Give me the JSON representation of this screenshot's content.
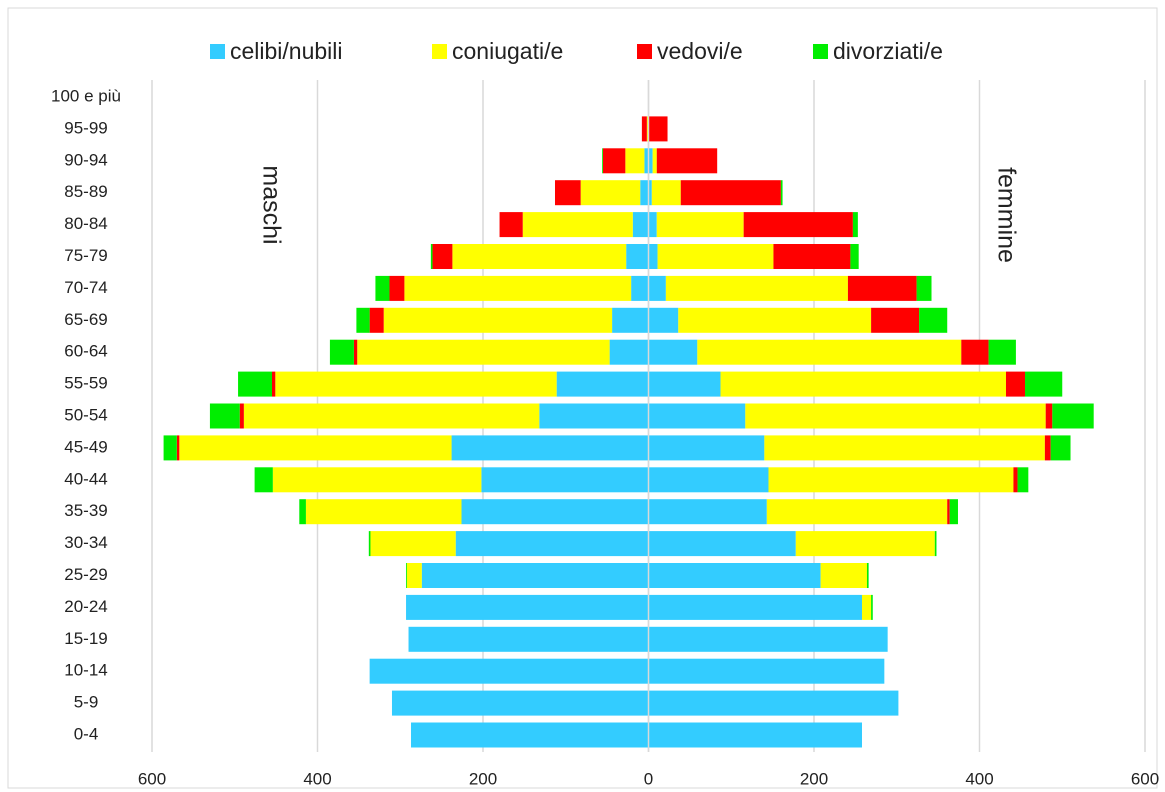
{
  "chart_data": {
    "type": "pyramid",
    "categories": [
      "0-4",
      "5-9",
      "10-14",
      "15-19",
      "20-24",
      "25-29",
      "30-34",
      "35-39",
      "40-44",
      "45-49",
      "50-54",
      "55-59",
      "60-64",
      "65-69",
      "70-74",
      "75-79",
      "80-84",
      "85-89",
      "90-94",
      "95-99",
      "100 e più"
    ],
    "annotations": [
      "maschi",
      "femmine"
    ],
    "xlim": [
      -600,
      600
    ],
    "xticks": [
      {
        "value": -600,
        "label": "600"
      },
      {
        "value": -400,
        "label": "400"
      },
      {
        "value": -200,
        "label": "200"
      },
      0,
      200,
      400,
      600
    ],
    "grid": true,
    "legend": "top",
    "series": [
      {
        "name": "celibi/nubili",
        "color": "#33ccff",
        "values": [
          [
            -287,
            258
          ],
          [
            -310,
            302
          ],
          [
            -337,
            285
          ],
          [
            -290,
            289
          ],
          [
            -293,
            258
          ],
          [
            -274,
            208
          ],
          [
            -233,
            178
          ],
          [
            -226,
            143
          ],
          [
            -202,
            145
          ],
          [
            -238,
            140
          ],
          [
            -132,
            117
          ],
          [
            -111,
            87
          ],
          [
            -47,
            59
          ],
          [
            -44,
            36
          ],
          [
            -21,
            21
          ],
          [
            -27,
            11
          ],
          [
            -19,
            10
          ],
          [
            -10,
            4
          ],
          [
            -5,
            5
          ],
          [
            0,
            0
          ],
          [
            0,
            0
          ]
        ]
      },
      {
        "name": "coniugati/e",
        "color": "#ffff00",
        "values": [
          [
            0,
            0
          ],
          [
            0,
            0
          ],
          [
            0,
            0
          ],
          [
            0,
            0
          ],
          [
            0,
            11
          ],
          [
            -18,
            56
          ],
          [
            -103,
            168
          ],
          [
            -188,
            218
          ],
          [
            -252,
            296
          ],
          [
            -329,
            339
          ],
          [
            -357,
            363
          ],
          [
            -340,
            345
          ],
          [
            -305,
            319
          ],
          [
            -276,
            233
          ],
          [
            -274,
            220
          ],
          [
            -210,
            140
          ],
          [
            -133,
            105
          ],
          [
            -72,
            35
          ],
          [
            -23,
            5
          ],
          [
            -2,
            0
          ],
          [
            0,
            0
          ]
        ]
      },
      {
        "name": "vedovi/e",
        "color": "#ff0000",
        "values": [
          [
            0,
            0
          ],
          [
            0,
            0
          ],
          [
            0,
            0
          ],
          [
            0,
            0
          ],
          [
            0,
            0
          ],
          [
            0,
            0
          ],
          [
            0,
            0
          ],
          [
            0,
            3
          ],
          [
            0,
            5
          ],
          [
            -3,
            7
          ],
          [
            -5,
            8
          ],
          [
            -4,
            23
          ],
          [
            -4,
            33
          ],
          [
            -17,
            58
          ],
          [
            -18,
            83
          ],
          [
            -24,
            93
          ],
          [
            -28,
            132
          ],
          [
            -31,
            121
          ],
          [
            -27,
            73
          ],
          [
            -6,
            23
          ],
          [
            0,
            0
          ]
        ]
      },
      {
        "name": "divorziati/e",
        "color": "#00ee00",
        "values": [
          [
            0,
            0
          ],
          [
            0,
            0
          ],
          [
            0,
            0
          ],
          [
            0,
            0
          ],
          [
            0,
            2
          ],
          [
            -1,
            2
          ],
          [
            -2,
            2
          ],
          [
            -8,
            10
          ],
          [
            -22,
            13
          ],
          [
            -16,
            24
          ],
          [
            -36,
            50
          ],
          [
            -41,
            45
          ],
          [
            -29,
            33
          ],
          [
            -16,
            34
          ],
          [
            -17,
            18
          ],
          [
            -2,
            10
          ],
          [
            0,
            6
          ],
          [
            0,
            2
          ],
          [
            -1,
            0
          ],
          [
            0,
            0
          ],
          [
            0,
            0
          ]
        ]
      }
    ]
  }
}
